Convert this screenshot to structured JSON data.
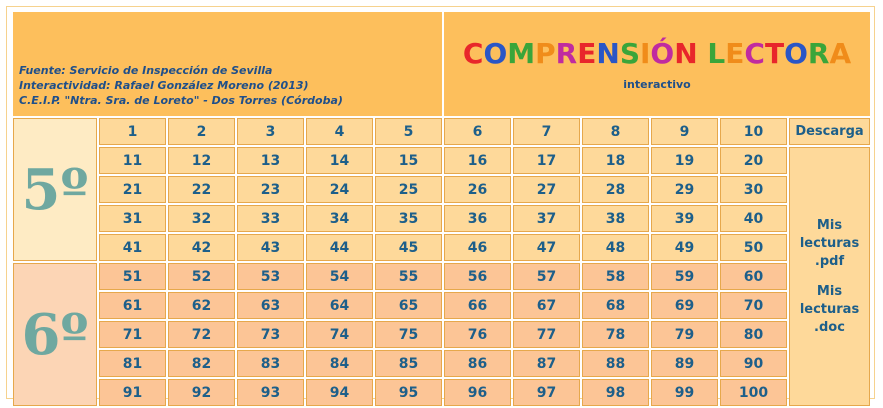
{
  "header": {
    "credits": [
      "Fuente: Servicio de Inspección de Sevilla",
      "Interactividad: Rafael González Moreno (2013)",
      "C.E.I.P. \"Ntra. Sra. de Loreto\" - Dos Torres (Córdoba)"
    ],
    "title": "COMPRENSIÓN LECTORA",
    "subtitle": "interactivo"
  },
  "levels": [
    {
      "label": "5º"
    },
    {
      "label": "6º"
    }
  ],
  "table": {
    "rows": [
      [
        "1",
        "2",
        "3",
        "4",
        "5",
        "6",
        "7",
        "8",
        "9",
        "10"
      ],
      [
        "11",
        "12",
        "13",
        "14",
        "15",
        "16",
        "17",
        "18",
        "19",
        "20"
      ],
      [
        "21",
        "22",
        "23",
        "24",
        "25",
        "26",
        "27",
        "28",
        "29",
        "30"
      ],
      [
        "31",
        "32",
        "33",
        "34",
        "35",
        "36",
        "37",
        "38",
        "39",
        "40"
      ],
      [
        "41",
        "42",
        "43",
        "44",
        "45",
        "46",
        "47",
        "48",
        "49",
        "50"
      ],
      [
        "51",
        "52",
        "53",
        "54",
        "55",
        "56",
        "57",
        "58",
        "59",
        "60"
      ],
      [
        "61",
        "62",
        "63",
        "64",
        "65",
        "66",
        "67",
        "68",
        "69",
        "70"
      ],
      [
        "71",
        "72",
        "73",
        "74",
        "75",
        "76",
        "77",
        "78",
        "79",
        "80"
      ],
      [
        "81",
        "82",
        "83",
        "84",
        "85",
        "86",
        "87",
        "88",
        "89",
        "90"
      ],
      [
        "91",
        "92",
        "93",
        "94",
        "95",
        "96",
        "97",
        "98",
        "99",
        "100"
      ]
    ]
  },
  "downloads": {
    "heading": "Descarga",
    "items": [
      "Mis lecturas .pdf",
      "Mis lecturas .doc"
    ]
  }
}
